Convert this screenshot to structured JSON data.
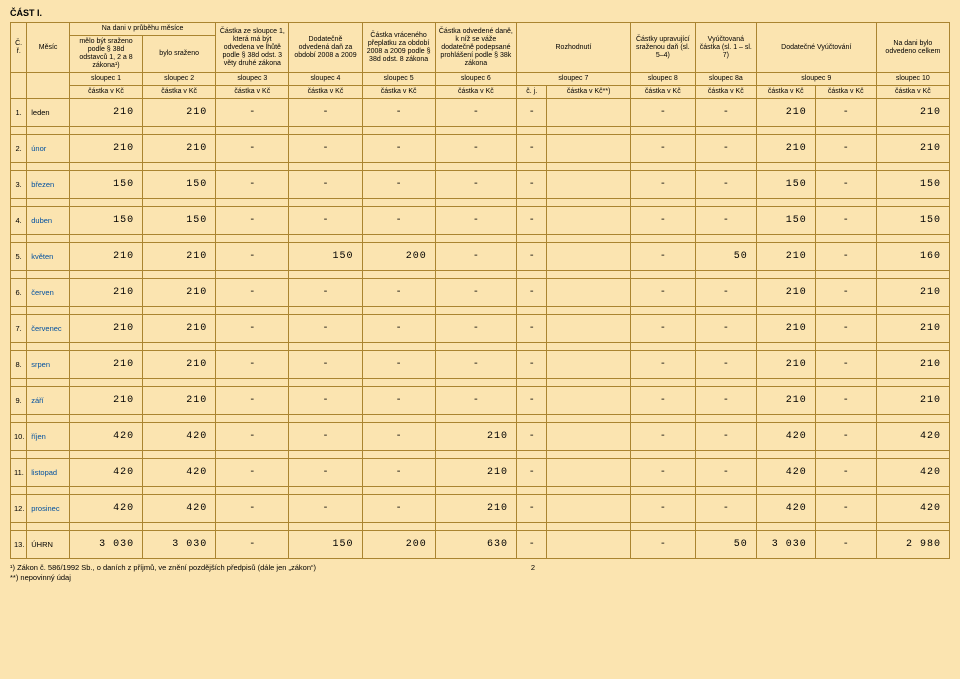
{
  "title": "ČÁST I.",
  "cols": {
    "cr": "Č.\nř.",
    "mesic": "Měsíc",
    "group_nadani": "Na dani v průběhu měsíce",
    "c1": "mělo být sraženo\npodle § 38d odstavců\n1, 2 a 8 zákona¹)",
    "c2": "bylo sraženo",
    "c3": "Částka ze sloupce 1,\nkterá má být\nodvedena ve lhůtě\npodle § 38d\nodst. 3 věty druhé\nzákona",
    "c4": "Dodatečně odvedená\ndaň za období\n2008 a 2009",
    "c5": "Částka\nvráceného přeplatku\nza období\n2008 a 2009 podle\n§ 38d odst. 8 zákona",
    "c6": "Částka odvedené daně,\nk níž se váže\ndodatečně\npodepsané\nprohlášení podle\n§ 38k zákona",
    "c7": "Rozhodnutí",
    "c8": "Částky upravující\nsraženou daň\n(sl. 5–4)",
    "c8a": "Vyúčtovaná\nčástka\n(sl. 1 – sl. 7)",
    "c9": "Dodatečné\nVyúčtování",
    "c10": "Na dani\nbylo odvedeno\ncelkem",
    "sl": [
      "sloupec 1",
      "sloupec 2",
      "sloupec 3",
      "sloupec 4",
      "sloupec 5",
      "sloupec 6",
      "sloupec 7",
      "sloupec 8",
      "sloupec 8a",
      "sloupec 9",
      "sloupec 10"
    ],
    "unit_kc": "částka v Kč",
    "unit_cj": "č. j.",
    "unit_kcs": "částka v Kč**)"
  },
  "rows": [
    {
      "n": "1.",
      "m": "leden",
      "v": [
        "210",
        "210",
        "-",
        "-",
        "-",
        "-",
        "-",
        "",
        "-",
        "-",
        "210",
        "-",
        "210"
      ]
    },
    {
      "n": "2.",
      "m": "únor",
      "v": [
        "210",
        "210",
        "-",
        "-",
        "-",
        "-",
        "-",
        "",
        "-",
        "-",
        "210",
        "-",
        "210"
      ]
    },
    {
      "n": "3.",
      "m": "březen",
      "v": [
        "150",
        "150",
        "-",
        "-",
        "-",
        "-",
        "-",
        "",
        "-",
        "-",
        "150",
        "-",
        "150"
      ]
    },
    {
      "n": "4.",
      "m": "duben",
      "v": [
        "150",
        "150",
        "-",
        "-",
        "-",
        "-",
        "-",
        "",
        "-",
        "-",
        "150",
        "-",
        "150"
      ]
    },
    {
      "n": "5.",
      "m": "květen",
      "v": [
        "210",
        "210",
        "-",
        "150",
        "200",
        "-",
        "-",
        "",
        "-",
        "50",
        "210",
        "-",
        "160"
      ]
    },
    {
      "n": "6.",
      "m": "červen",
      "v": [
        "210",
        "210",
        "-",
        "-",
        "-",
        "-",
        "-",
        "",
        "-",
        "-",
        "210",
        "-",
        "210"
      ]
    },
    {
      "n": "7.",
      "m": "červenec",
      "v": [
        "210",
        "210",
        "-",
        "-",
        "-",
        "-",
        "-",
        "",
        "-",
        "-",
        "210",
        "-",
        "210"
      ]
    },
    {
      "n": "8.",
      "m": "srpen",
      "v": [
        "210",
        "210",
        "-",
        "-",
        "-",
        "-",
        "-",
        "",
        "-",
        "-",
        "210",
        "-",
        "210"
      ]
    },
    {
      "n": "9.",
      "m": "září",
      "v": [
        "210",
        "210",
        "-",
        "-",
        "-",
        "-",
        "-",
        "",
        "-",
        "-",
        "210",
        "-",
        "210"
      ]
    },
    {
      "n": "10.",
      "m": "říjen",
      "v": [
        "420",
        "420",
        "-",
        "-",
        "-",
        "210",
        "-",
        "",
        "-",
        "-",
        "420",
        "-",
        "420"
      ]
    },
    {
      "n": "11.",
      "m": "listopad",
      "v": [
        "420",
        "420",
        "-",
        "-",
        "-",
        "210",
        "-",
        "",
        "-",
        "-",
        "420",
        "-",
        "420"
      ]
    },
    {
      "n": "12.",
      "m": "prosinec",
      "v": [
        "420",
        "420",
        "-",
        "-",
        "-",
        "210",
        "-",
        "",
        "-",
        "-",
        "420",
        "-",
        "420"
      ]
    },
    {
      "n": "13.",
      "m": "ÚHRN",
      "v": [
        "3 030",
        "3 030",
        "-",
        "150",
        "200",
        "630",
        "-",
        "",
        "-",
        "50",
        "3 030",
        "-",
        "2 980"
      ]
    }
  ],
  "footnotes": {
    "a": "¹) Zákon č. 586/1992 Sb., o daních z příjmů, ve znění pozdějších předpisů (dále jen „zákon“)",
    "b": "**) nepovinný údaj",
    "page": "2"
  }
}
